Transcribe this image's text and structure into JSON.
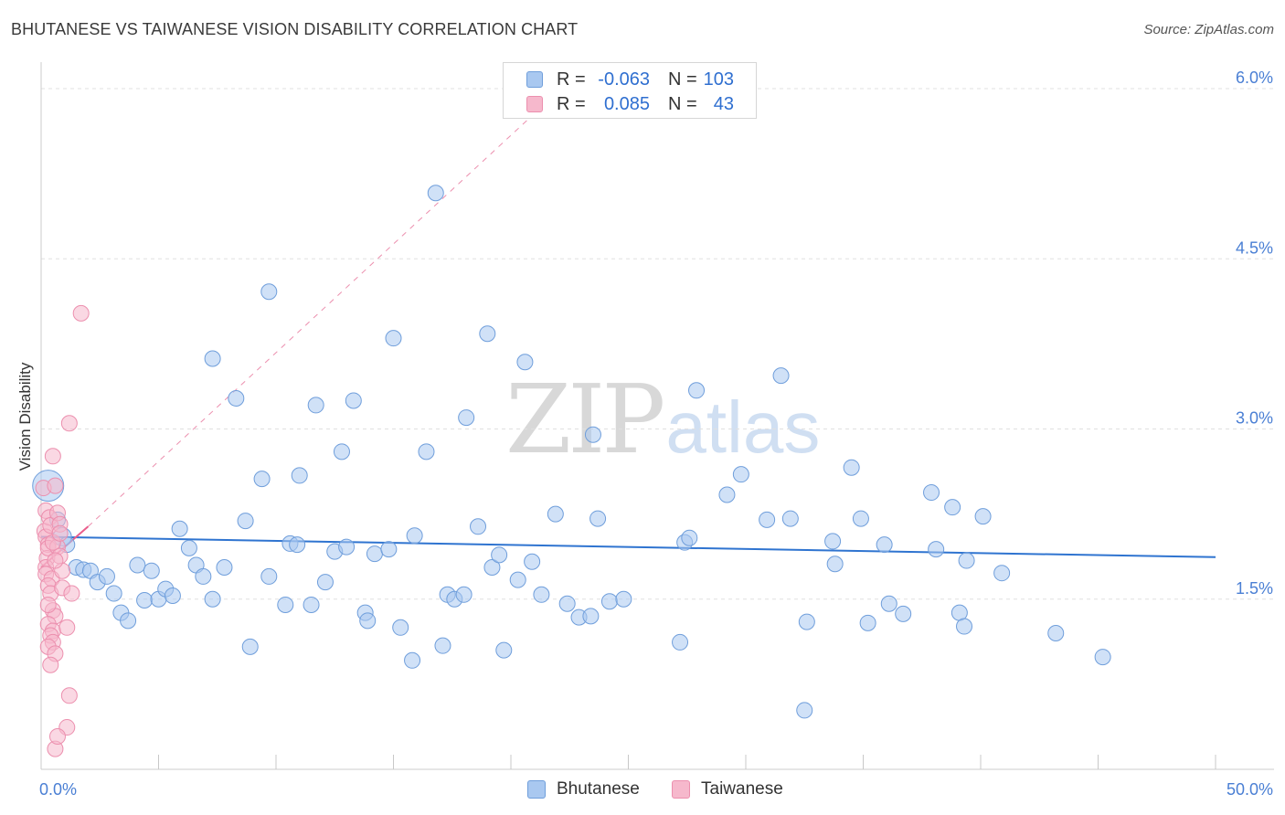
{
  "title": "BHUTANESE VS TAIWANESE VISION DISABILITY CORRELATION CHART",
  "source": "Source: ZipAtlas.com",
  "watermark": {
    "zip": "ZIP",
    "atlas": "atlas"
  },
  "colors": {
    "bhutanese_fill": "#a9c8f0",
    "bhutanese_stroke": "#6f9edb",
    "bhutanese_line": "#2f74d0",
    "taiwanese_fill": "#f6b8cc",
    "taiwanese_stroke": "#ec8fae",
    "taiwanese_line": "#ea5d8c",
    "tick_label": "#4a7fd4",
    "grid": "#e0e0e0"
  },
  "legend": {
    "rows": [
      {
        "series": "Bhutanese",
        "r_label": "R =",
        "r_value": "-0.063",
        "n_label": "N =",
        "n_value": "103"
      },
      {
        "series": "Taiwanese",
        "r_label": "R =",
        "r_value": "0.085",
        "n_label": "N =",
        "n_value": "43"
      }
    ]
  },
  "bottom_legend": [
    "Bhutanese",
    "Taiwanese"
  ],
  "chart_data": {
    "type": "scatter",
    "title": "BHUTANESE VS TAIWANESE VISION DISABILITY CORRELATION CHART",
    "xlabel": "",
    "ylabel": "Vision Disability",
    "xlim": [
      0,
      50
    ],
    "ylim": [
      0,
      6.2
    ],
    "x_tick_labels": [
      "0.0%",
      "50.0%"
    ],
    "y_ticks": [
      {
        "value": 1.5,
        "label": "1.5%"
      },
      {
        "value": 3.0,
        "label": "3.0%"
      },
      {
        "value": 4.5,
        "label": "4.5%"
      },
      {
        "value": 6.0,
        "label": "6.0%"
      }
    ],
    "x_minor_ticks": [
      5,
      10,
      15,
      20,
      25,
      30,
      35,
      40,
      45,
      50
    ],
    "grid": true,
    "legend_position": "top-center",
    "series": [
      {
        "name": "Bhutanese",
        "R": -0.063,
        "N": 103,
        "trend": {
          "x": [
            0,
            50
          ],
          "y": [
            2.05,
            1.87
          ]
        },
        "points": [
          [
            0.3,
            2.5
          ],
          [
            0.7,
            2.2
          ],
          [
            0.9,
            2.05
          ],
          [
            1.1,
            1.98
          ],
          [
            1.5,
            1.78
          ],
          [
            1.8,
            1.76
          ],
          [
            2.1,
            1.75
          ],
          [
            2.4,
            1.65
          ],
          [
            2.8,
            1.7
          ],
          [
            3.1,
            1.55
          ],
          [
            3.4,
            1.38
          ],
          [
            3.7,
            1.31
          ],
          [
            4.1,
            1.8
          ],
          [
            4.4,
            1.49
          ],
          [
            4.7,
            1.75
          ],
          [
            5.0,
            1.5
          ],
          [
            5.3,
            1.59
          ],
          [
            5.6,
            1.53
          ],
          [
            5.9,
            2.12
          ],
          [
            6.3,
            1.95
          ],
          [
            6.6,
            1.8
          ],
          [
            6.9,
            1.7
          ],
          [
            7.3,
            1.5
          ],
          [
            7.8,
            1.78
          ],
          [
            7.3,
            3.62
          ],
          [
            8.3,
            3.27
          ],
          [
            8.7,
            2.19
          ],
          [
            8.9,
            1.08
          ],
          [
            9.4,
            2.56
          ],
          [
            9.7,
            1.7
          ],
          [
            9.7,
            4.21
          ],
          [
            10.4,
            1.45
          ],
          [
            10.6,
            1.99
          ],
          [
            10.9,
            1.98
          ],
          [
            11.0,
            2.59
          ],
          [
            11.5,
            1.45
          ],
          [
            11.7,
            3.21
          ],
          [
            12.1,
            1.65
          ],
          [
            12.5,
            1.92
          ],
          [
            12.8,
            2.8
          ],
          [
            13.0,
            1.96
          ],
          [
            13.3,
            3.25
          ],
          [
            13.8,
            1.38
          ],
          [
            13.9,
            1.31
          ],
          [
            14.2,
            1.9
          ],
          [
            14.8,
            1.94
          ],
          [
            15.0,
            3.8
          ],
          [
            15.3,
            1.25
          ],
          [
            15.8,
            0.96
          ],
          [
            15.9,
            2.06
          ],
          [
            16.4,
            2.8
          ],
          [
            16.8,
            5.08
          ],
          [
            17.3,
            1.54
          ],
          [
            17.6,
            1.5
          ],
          [
            18.0,
            1.54
          ],
          [
            18.1,
            3.1
          ],
          [
            18.6,
            2.14
          ],
          [
            19.0,
            3.84
          ],
          [
            19.2,
            1.78
          ],
          [
            19.5,
            1.89
          ],
          [
            19.7,
            1.05
          ],
          [
            20.3,
            1.67
          ],
          [
            20.6,
            3.59
          ],
          [
            20.9,
            1.83
          ],
          [
            21.3,
            1.54
          ],
          [
            21.9,
            2.25
          ],
          [
            22.4,
            1.46
          ],
          [
            22.9,
            1.34
          ],
          [
            23.4,
            1.35
          ],
          [
            23.5,
            2.95
          ],
          [
            23.7,
            2.21
          ],
          [
            24.2,
            1.48
          ],
          [
            24.8,
            1.5
          ],
          [
            27.4,
            2.0
          ],
          [
            27.6,
            2.04
          ],
          [
            27.2,
            1.12
          ],
          [
            27.9,
            3.34
          ],
          [
            29.2,
            2.42
          ],
          [
            29.8,
            2.6
          ],
          [
            30.9,
            2.2
          ],
          [
            31.5,
            3.47
          ],
          [
            31.9,
            2.21
          ],
          [
            32.6,
            1.3
          ],
          [
            33.7,
            2.01
          ],
          [
            33.8,
            1.81
          ],
          [
            34.5,
            2.66
          ],
          [
            34.9,
            2.21
          ],
          [
            35.2,
            1.29
          ],
          [
            35.9,
            1.98
          ],
          [
            36.1,
            1.46
          ],
          [
            36.7,
            1.37
          ],
          [
            37.9,
            2.44
          ],
          [
            38.1,
            1.94
          ],
          [
            38.8,
            2.31
          ],
          [
            39.1,
            1.38
          ],
          [
            39.3,
            1.26
          ],
          [
            39.4,
            1.84
          ],
          [
            40.1,
            2.23
          ],
          [
            40.9,
            1.73
          ],
          [
            43.2,
            1.2
          ],
          [
            45.2,
            0.99
          ],
          [
            32.5,
            0.52
          ],
          [
            17.1,
            1.09
          ]
        ]
      },
      {
        "name": "Taiwanese",
        "R": 0.085,
        "N": 43,
        "trend": {
          "x": [
            0,
            2
          ],
          "y": [
            1.78,
            2.14
          ]
        },
        "trend_extension": {
          "x": [
            2,
            21
          ],
          "y": [
            2.14,
            5.78
          ]
        },
        "points": [
          [
            0.1,
            2.48
          ],
          [
            0.2,
            2.28
          ],
          [
            0.15,
            2.1
          ],
          [
            0.2,
            2.05
          ],
          [
            0.3,
            1.98
          ],
          [
            0.25,
            1.86
          ],
          [
            0.2,
            1.78
          ],
          [
            0.35,
            2.22
          ],
          [
            0.4,
            2.15
          ],
          [
            0.3,
            1.95
          ],
          [
            0.2,
            1.72
          ],
          [
            0.45,
            1.68
          ],
          [
            0.3,
            1.62
          ],
          [
            0.4,
            1.55
          ],
          [
            0.5,
            1.4
          ],
          [
            0.6,
            1.35
          ],
          [
            0.3,
            1.28
          ],
          [
            0.5,
            1.22
          ],
          [
            0.4,
            1.18
          ],
          [
            0.5,
            1.12
          ],
          [
            0.3,
            1.08
          ],
          [
            0.6,
            1.02
          ],
          [
            0.4,
            0.92
          ],
          [
            0.5,
            2.76
          ],
          [
            0.6,
            2.5
          ],
          [
            0.7,
            2.26
          ],
          [
            0.8,
            2.16
          ],
          [
            0.7,
            1.96
          ],
          [
            0.8,
            1.88
          ],
          [
            0.9,
            1.6
          ],
          [
            1.1,
            1.25
          ],
          [
            0.9,
            1.75
          ],
          [
            1.2,
            0.65
          ],
          [
            1.1,
            0.37
          ],
          [
            0.6,
            0.18
          ],
          [
            0.7,
            0.29
          ],
          [
            1.7,
            4.02
          ],
          [
            1.2,
            3.05
          ],
          [
            1.3,
            1.55
          ],
          [
            0.5,
            2.0
          ],
          [
            0.6,
            1.84
          ],
          [
            0.8,
            2.08
          ],
          [
            0.3,
            1.45
          ]
        ]
      }
    ]
  }
}
